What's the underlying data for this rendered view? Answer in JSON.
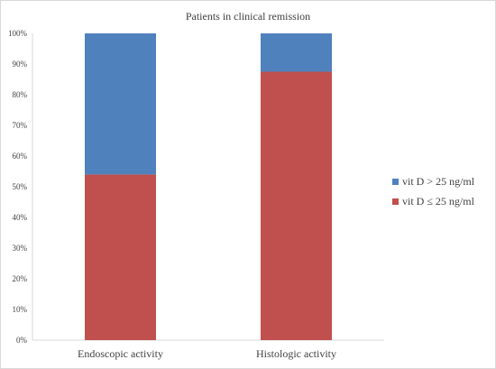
{
  "chart_data": {
    "type": "bar",
    "stacked": true,
    "title": "Patients in clinical remission",
    "xlabel": "",
    "ylabel": "",
    "categories": [
      "Endoscopic activity",
      "Histologic activity"
    ],
    "series": [
      {
        "name": "vit D ≤ 25 ng/ml",
        "values": [
          54,
          87.5
        ],
        "color": "#c0504d"
      },
      {
        "name": "vit D > 25 ng/ml",
        "values": [
          46,
          12.5
        ],
        "color": "#4f81bd"
      }
    ],
    "ylim": [
      0,
      100
    ],
    "yticks": [
      "0%",
      "10%",
      "20%",
      "30%",
      "40%",
      "50%",
      "60%",
      "70%",
      "80%",
      "90%",
      "100%"
    ],
    "legend_order": [
      1,
      0
    ],
    "legend_position": "right",
    "grid": false
  }
}
